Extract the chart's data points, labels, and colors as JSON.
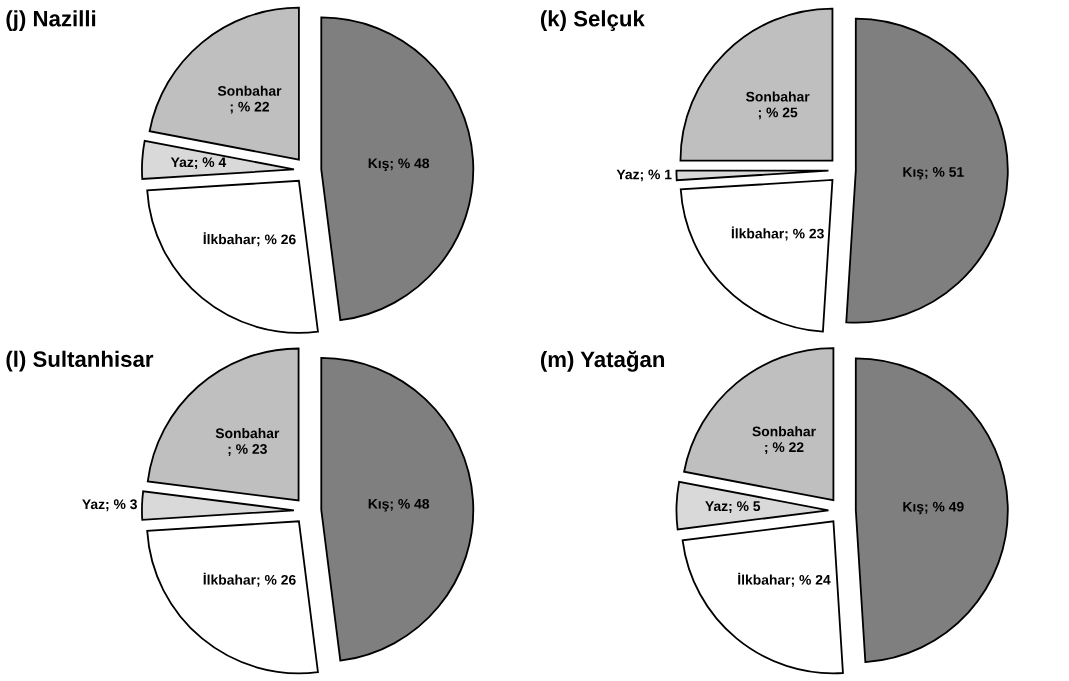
{
  "chart_data": [
    {
      "type": "pie",
      "title": "(j) Nazilli",
      "categories": [
        "Kış",
        "İlkbahar",
        "Yaz",
        "Sonbahar"
      ],
      "values": [
        48,
        26,
        4,
        22
      ],
      "colors": [
        "#7f7f7f",
        "#ffffff",
        "#d9d9d9",
        "#bfbfbf"
      ],
      "value_labels": [
        "; % 48",
        "; % 26",
        "; % 4",
        "; % 22"
      ]
    },
    {
      "type": "pie",
      "title": "(k) Selçuk",
      "categories": [
        "Kış",
        "İlkbahar",
        "Yaz",
        "Sonbahar"
      ],
      "values": [
        51,
        23,
        1,
        25
      ],
      "colors": [
        "#7f7f7f",
        "#ffffff",
        "#d9d9d9",
        "#bfbfbf"
      ],
      "value_labels": [
        "; % 51",
        "; % 23",
        "; % 1",
        "; % 25"
      ]
    },
    {
      "type": "pie",
      "title": "(l) Sultanhisar",
      "categories": [
        "Kış",
        "İlkbahar",
        "Yaz",
        "Sonbahar"
      ],
      "values": [
        48,
        26,
        3,
        23
      ],
      "colors": [
        "#7f7f7f",
        "#ffffff",
        "#d9d9d9",
        "#bfbfbf"
      ],
      "value_labels": [
        "; % 48",
        "; % 26",
        "; % 3",
        "; % 23"
      ]
    },
    {
      "type": "pie",
      "title": "(m) Yatağan",
      "categories": [
        "Kış",
        "İlkbahar",
        "Yaz",
        "Sonbahar"
      ],
      "values": [
        49,
        24,
        5,
        22
      ],
      "colors": [
        "#7f7f7f",
        "#ffffff",
        "#d9d9d9",
        "#bfbfbf"
      ],
      "value_labels": [
        "; % 49",
        "; % 24",
        "; % 5",
        "; % 22"
      ]
    }
  ]
}
